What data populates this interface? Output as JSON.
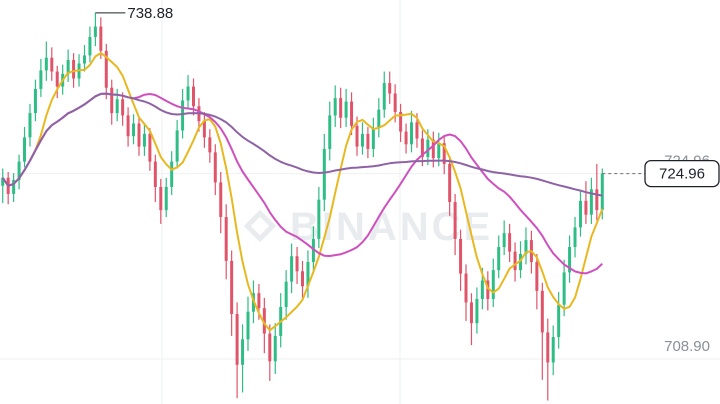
{
  "watermark": {
    "text": "BINANCE"
  },
  "chart_data": {
    "type": "candlestick",
    "ylim": [
      705.0,
      740.0
    ],
    "y_ticks": [
      {
        "value": 724.96,
        "label": "724.96"
      },
      {
        "value": 708.9,
        "label": "708.90"
      }
    ],
    "high_marker": {
      "value": 738.88,
      "label": "738.88"
    },
    "last_price": {
      "value": 724.96,
      "label": "724.96"
    },
    "grid": true,
    "colors": {
      "up": "#2ebd85",
      "down": "#e0546a",
      "ma_fast": "#e8b81f",
      "ma_mid": "#d04fbe",
      "ma_slow": "#8e63a5",
      "grid": "#eef0f2",
      "axis_text": "#8a8f98"
    },
    "candles": [
      [
        723.9,
        724.6,
        722.4,
        725.4
      ],
      [
        724.6,
        723.2,
        722.3,
        725.1
      ],
      [
        723.2,
        724.4,
        722.5,
        725.0
      ],
      [
        724.4,
        726.0,
        723.6,
        726.6
      ],
      [
        726.0,
        728.1,
        725.5,
        729.0
      ],
      [
        728.1,
        730.2,
        727.3,
        731.0
      ],
      [
        730.2,
        732.3,
        729.5,
        733.1
      ],
      [
        732.3,
        733.9,
        731.6,
        734.9
      ],
      [
        733.9,
        735.0,
        733.0,
        736.4
      ],
      [
        735.0,
        733.8,
        733.0,
        735.9
      ],
      [
        733.8,
        732.5,
        731.5,
        734.3
      ],
      [
        732.5,
        733.6,
        731.8,
        734.4
      ],
      [
        733.6,
        734.8,
        732.9,
        735.7
      ],
      [
        734.8,
        733.2,
        732.4,
        735.4
      ],
      [
        733.2,
        734.5,
        732.5,
        735.3
      ],
      [
        734.5,
        735.2,
        733.8,
        736.1
      ],
      [
        735.2,
        736.8,
        734.6,
        737.7
      ],
      [
        736.8,
        737.7,
        736.0,
        738.88
      ],
      [
        737.7,
        735.6,
        734.9,
        738.5
      ],
      [
        735.6,
        732.4,
        731.4,
        736.2
      ],
      [
        732.4,
        730.2,
        729.2,
        733.1
      ],
      [
        730.2,
        731.4,
        729.5,
        732.3
      ],
      [
        731.4,
        730.0,
        729.1,
        732.0
      ],
      [
        730.0,
        728.2,
        727.3,
        730.7
      ],
      [
        728.2,
        729.3,
        727.5,
        730.1
      ],
      [
        729.3,
        727.3,
        726.5,
        729.8
      ],
      [
        727.3,
        728.4,
        726.5,
        729.3
      ],
      [
        728.4,
        726.0,
        725.2,
        728.9
      ],
      [
        726.0,
        723.8,
        722.5,
        726.6
      ],
      [
        723.8,
        721.8,
        720.6,
        724.5
      ],
      [
        721.8,
        723.8,
        721.2,
        724.6
      ],
      [
        723.8,
        726.0,
        723.1,
        726.9
      ],
      [
        726.0,
        728.7,
        725.4,
        729.6
      ],
      [
        728.7,
        731.3,
        728.0,
        732.3
      ],
      [
        731.3,
        732.5,
        730.6,
        733.5
      ],
      [
        732.5,
        730.8,
        730.0,
        733.2
      ],
      [
        730.8,
        729.5,
        728.6,
        731.5
      ],
      [
        729.5,
        728.1,
        727.2,
        730.3
      ],
      [
        728.1,
        726.8,
        725.9,
        728.8
      ],
      [
        726.8,
        724.2,
        723.1,
        727.5
      ],
      [
        724.2,
        721.2,
        719.8,
        725.1
      ],
      [
        721.2,
        717.4,
        715.8,
        722.3
      ],
      [
        717.4,
        712.8,
        710.9,
        718.3
      ],
      [
        712.8,
        708.4,
        705.5,
        713.8
      ],
      [
        708.4,
        710.6,
        706.0,
        711.9
      ],
      [
        710.6,
        713.0,
        709.6,
        714.3
      ],
      [
        713.0,
        714.6,
        712.0,
        715.7
      ],
      [
        714.6,
        713.3,
        712.3,
        715.4
      ],
      [
        713.3,
        711.1,
        709.4,
        714.2
      ],
      [
        711.1,
        708.7,
        707.0,
        711.9
      ],
      [
        708.7,
        710.9,
        707.6,
        712.0
      ],
      [
        710.9,
        713.4,
        709.9,
        714.6
      ],
      [
        713.4,
        715.6,
        712.3,
        716.6
      ],
      [
        715.6,
        717.8,
        714.6,
        718.9
      ],
      [
        717.8,
        716.5,
        715.4,
        718.6
      ],
      [
        716.5,
        715.2,
        714.1,
        717.4
      ],
      [
        715.2,
        717.3,
        714.2,
        718.3
      ],
      [
        717.3,
        719.3,
        716.3,
        720.4
      ],
      [
        719.3,
        722.7,
        718.5,
        723.8
      ],
      [
        722.7,
        727.1,
        721.7,
        728.4
      ],
      [
        727.1,
        730.0,
        726.1,
        731.2
      ],
      [
        730.0,
        731.5,
        729.0,
        732.6
      ],
      [
        731.5,
        729.8,
        728.9,
        732.4
      ],
      [
        729.8,
        731.2,
        729.0,
        732.3
      ],
      [
        731.2,
        729.1,
        728.3,
        732.0
      ],
      [
        729.1,
        727.3,
        726.5,
        729.9
      ],
      [
        727.3,
        728.4,
        726.6,
        729.4
      ],
      [
        728.4,
        727.1,
        726.3,
        729.0
      ],
      [
        727.1,
        728.9,
        726.4,
        729.8
      ],
      [
        728.9,
        730.5,
        728.1,
        731.5
      ],
      [
        730.5,
        732.8,
        729.8,
        733.8
      ],
      [
        732.8,
        731.9,
        731.0,
        733.8
      ],
      [
        731.9,
        730.3,
        729.4,
        732.7
      ],
      [
        730.3,
        728.6,
        727.7,
        731.0
      ],
      [
        728.6,
        727.5,
        726.7,
        729.3
      ],
      [
        727.5,
        729.4,
        726.8,
        730.4
      ],
      [
        729.4,
        728.0,
        727.2,
        730.2
      ],
      [
        728.0,
        726.4,
        725.6,
        728.7
      ],
      [
        726.4,
        727.9,
        725.7,
        728.8
      ],
      [
        727.9,
        726.3,
        725.5,
        728.6
      ],
      [
        726.3,
        727.6,
        725.6,
        728.5
      ],
      [
        727.6,
        725.8,
        724.9,
        728.2
      ],
      [
        725.8,
        722.5,
        721.3,
        726.4
      ],
      [
        722.5,
        719.3,
        717.9,
        723.2
      ],
      [
        719.3,
        716.3,
        714.8,
        720.1
      ],
      [
        716.3,
        713.8,
        712.2,
        717.1
      ],
      [
        713.8,
        712.0,
        710.1,
        714.6
      ],
      [
        712.0,
        714.1,
        711.1,
        715.1
      ],
      [
        714.1,
        715.7,
        713.2,
        716.8
      ],
      [
        715.7,
        714.1,
        713.1,
        716.5
      ],
      [
        714.1,
        716.6,
        713.4,
        717.6
      ],
      [
        716.6,
        718.6,
        715.9,
        719.6
      ],
      [
        718.6,
        719.8,
        717.9,
        720.9
      ],
      [
        719.8,
        718.2,
        717.3,
        720.6
      ],
      [
        718.2,
        716.6,
        715.6,
        719.0
      ],
      [
        716.6,
        718.0,
        715.9,
        719.1
      ],
      [
        718.0,
        719.2,
        717.1,
        720.3
      ],
      [
        719.2,
        717.3,
        716.3,
        720.0
      ],
      [
        717.3,
        714.8,
        713.2,
        718.0
      ],
      [
        714.8,
        711.2,
        707.1,
        715.5
      ],
      [
        711.2,
        708.6,
        705.3,
        712.4
      ],
      [
        708.6,
        710.8,
        707.5,
        711.8
      ],
      [
        710.8,
        713.6,
        709.8,
        714.7
      ],
      [
        713.6,
        716.4,
        712.6,
        717.5
      ],
      [
        716.4,
        718.6,
        715.5,
        719.6
      ],
      [
        718.6,
        720.3,
        717.7,
        721.2
      ],
      [
        720.3,
        722.6,
        719.5,
        723.4
      ],
      [
        722.6,
        721.4,
        720.6,
        724.3
      ],
      [
        721.4,
        723.6,
        720.6,
        724.6
      ],
      [
        723.6,
        721.8,
        720.9,
        725.8
      ],
      [
        721.8,
        724.96,
        721.0,
        725.4
      ]
    ]
  }
}
